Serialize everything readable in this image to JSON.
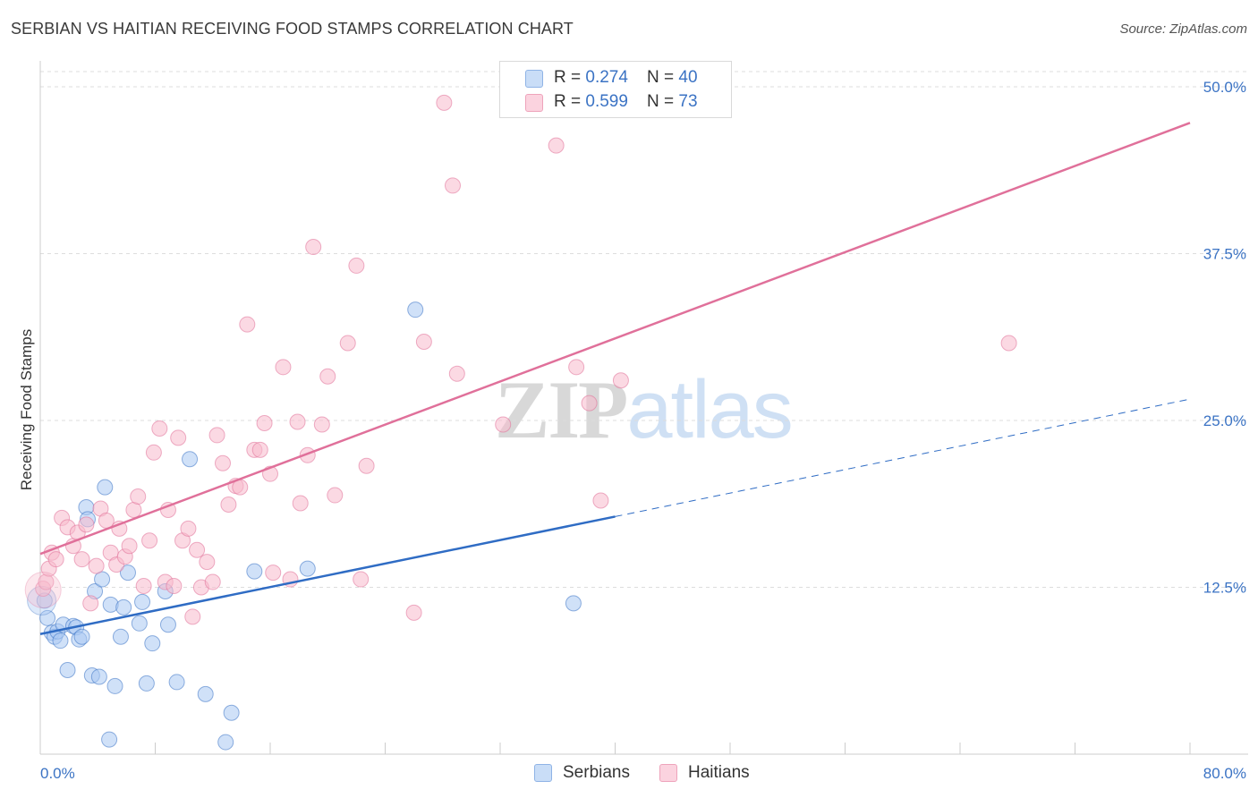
{
  "title": "SERBIAN VS HAITIAN RECEIVING FOOD STAMPS CORRELATION CHART",
  "source": "Source: ZipAtlas.com",
  "watermark": {
    "zip": "ZIP",
    "atlas": "atlas"
  },
  "legend": {
    "rows": [
      {
        "r_label": "R = ",
        "r_value": "0.274",
        "n_label": "N = ",
        "n_value": "40",
        "color": "#a9c9f2"
      },
      {
        "r_label": "R = ",
        "r_value": "0.599",
        "n_label": "N = ",
        "n_value": "73",
        "color": "#f7b9cc"
      }
    ]
  },
  "bottom_legend": {
    "serbians": "Serbians",
    "haitians": "Haitians"
  },
  "chart_data": {
    "type": "scatter",
    "title": "SERBIAN VS HAITIAN RECEIVING FOOD STAMPS CORRELATION CHART",
    "xlabel": "",
    "ylabel": "Receiving Food Stamps",
    "xlim": [
      0,
      80
    ],
    "ylim": [
      0,
      50
    ],
    "x_tick_labels": [
      "0.0%",
      "80.0%"
    ],
    "y_ticks": [
      12.5,
      25.0,
      37.5,
      50.0
    ],
    "y_tick_labels": [
      "12.5%",
      "25.0%",
      "37.5%",
      "50.0%"
    ],
    "grid": "horizontal dashed",
    "legend_placement": "top-center",
    "series": [
      {
        "name": "Serbians",
        "color": "#a9c9f2",
        "stroke": "#3b73c4",
        "trend": {
          "x0": 0,
          "y0": 9.0,
          "x1": 40,
          "y1": 17.8,
          "x_extend": 80,
          "y_extend": 26.6
        },
        "points": [
          [
            0.3,
            11.5
          ],
          [
            0.5,
            10.2
          ],
          [
            0.8,
            9.1
          ],
          [
            1.0,
            8.8
          ],
          [
            1.2,
            9.2
          ],
          [
            1.4,
            8.5
          ],
          [
            1.6,
            9.7
          ],
          [
            1.9,
            6.3
          ],
          [
            2.3,
            9.6
          ],
          [
            2.5,
            9.5
          ],
          [
            2.7,
            8.6
          ],
          [
            2.9,
            8.8
          ],
          [
            3.2,
            18.5
          ],
          [
            3.3,
            17.6
          ],
          [
            3.6,
            5.9
          ],
          [
            3.8,
            12.2
          ],
          [
            4.1,
            5.8
          ],
          [
            4.3,
            13.1
          ],
          [
            4.5,
            20.0
          ],
          [
            4.8,
            1.1
          ],
          [
            4.9,
            11.2
          ],
          [
            5.2,
            5.1
          ],
          [
            5.6,
            8.8
          ],
          [
            5.8,
            11.0
          ],
          [
            6.1,
            13.6
          ],
          [
            6.9,
            9.8
          ],
          [
            7.1,
            11.4
          ],
          [
            7.4,
            5.3
          ],
          [
            7.8,
            8.3
          ],
          [
            8.7,
            12.2
          ],
          [
            8.9,
            9.7
          ],
          [
            9.5,
            5.4
          ],
          [
            10.4,
            22.1
          ],
          [
            11.5,
            4.5
          ],
          [
            12.9,
            0.9
          ],
          [
            13.3,
            3.1
          ],
          [
            14.9,
            13.7
          ],
          [
            18.6,
            13.9
          ],
          [
            26.1,
            33.3
          ],
          [
            37.1,
            11.3
          ]
        ]
      },
      {
        "name": "Haitians",
        "color": "#f7b9cc",
        "stroke": "#e07098",
        "trend": {
          "x0": 0,
          "y0": 15.0,
          "x1": 80,
          "y1": 47.3
        },
        "points": [
          [
            0.2,
            12.4
          ],
          [
            0.4,
            12.9
          ],
          [
            0.6,
            13.9
          ],
          [
            0.8,
            15.1
          ],
          [
            1.1,
            14.6
          ],
          [
            1.5,
            17.7
          ],
          [
            1.9,
            17.0
          ],
          [
            2.3,
            15.6
          ],
          [
            2.6,
            16.6
          ],
          [
            2.9,
            14.6
          ],
          [
            3.2,
            17.2
          ],
          [
            3.5,
            11.3
          ],
          [
            3.9,
            14.1
          ],
          [
            4.2,
            18.4
          ],
          [
            4.6,
            17.5
          ],
          [
            4.9,
            15.1
          ],
          [
            5.3,
            14.2
          ],
          [
            5.5,
            16.9
          ],
          [
            5.9,
            14.8
          ],
          [
            6.2,
            15.6
          ],
          [
            6.5,
            18.3
          ],
          [
            6.8,
            19.3
          ],
          [
            7.2,
            12.6
          ],
          [
            7.6,
            16.0
          ],
          [
            7.9,
            22.6
          ],
          [
            8.3,
            24.4
          ],
          [
            8.7,
            12.9
          ],
          [
            8.9,
            18.3
          ],
          [
            9.3,
            12.6
          ],
          [
            9.6,
            23.7
          ],
          [
            9.9,
            16.0
          ],
          [
            10.3,
            16.9
          ],
          [
            10.6,
            10.3
          ],
          [
            10.9,
            15.3
          ],
          [
            11.2,
            12.5
          ],
          [
            11.6,
            14.4
          ],
          [
            12.0,
            12.9
          ],
          [
            12.3,
            23.9
          ],
          [
            12.7,
            21.8
          ],
          [
            13.1,
            18.7
          ],
          [
            13.6,
            20.1
          ],
          [
            13.9,
            20.0
          ],
          [
            14.4,
            32.2
          ],
          [
            14.9,
            22.8
          ],
          [
            15.3,
            22.8
          ],
          [
            15.6,
            24.8
          ],
          [
            16.0,
            21.0
          ],
          [
            16.2,
            13.6
          ],
          [
            16.9,
            29.0
          ],
          [
            17.4,
            13.1
          ],
          [
            17.9,
            24.9
          ],
          [
            18.1,
            18.8
          ],
          [
            18.6,
            22.4
          ],
          [
            19.0,
            38.0
          ],
          [
            19.6,
            24.7
          ],
          [
            20.0,
            28.3
          ],
          [
            20.5,
            19.4
          ],
          [
            21.4,
            30.8
          ],
          [
            22.0,
            36.6
          ],
          [
            22.3,
            13.1
          ],
          [
            22.7,
            21.6
          ],
          [
            26.0,
            10.6
          ],
          [
            26.7,
            30.9
          ],
          [
            28.1,
            48.8
          ],
          [
            28.7,
            42.6
          ],
          [
            29.0,
            28.5
          ],
          [
            32.2,
            24.7
          ],
          [
            35.9,
            45.6
          ],
          [
            37.3,
            29.0
          ],
          [
            38.2,
            26.3
          ],
          [
            39.0,
            19.0
          ],
          [
            40.4,
            28.0
          ],
          [
            67.4,
            30.8
          ]
        ]
      }
    ]
  }
}
